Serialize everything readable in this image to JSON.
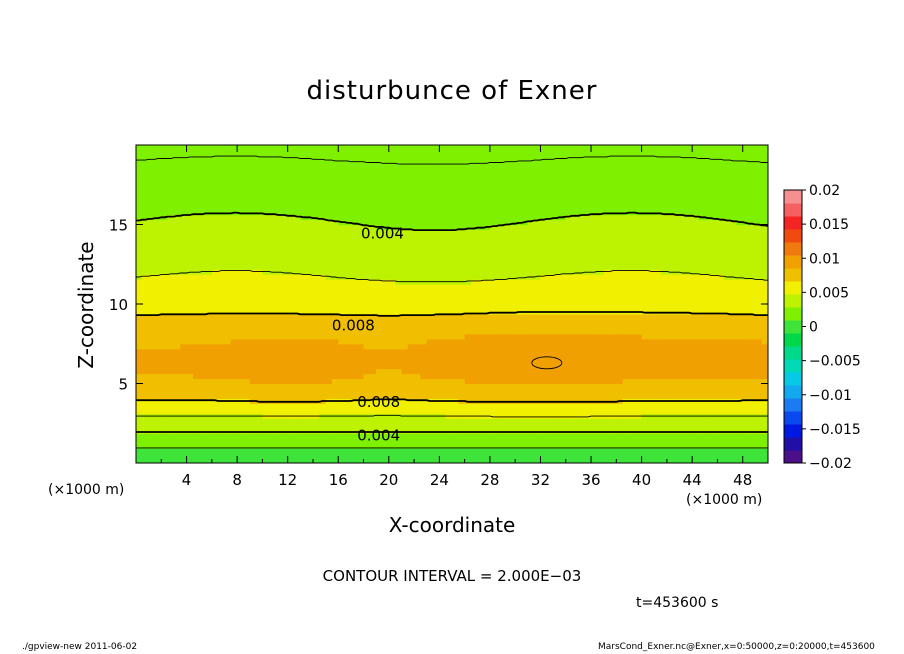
{
  "chart_data": {
    "type": "heatmap",
    "title": "disturbunce of Exner",
    "xlabel": "X-coordinate",
    "ylabel": "Z-coordinate",
    "x_unit_left": "(×1000 m)",
    "x_unit_right": "(×1000 m)",
    "xlim": [
      0,
      50
    ],
    "ylim": [
      0,
      20
    ],
    "x_ticks": [
      4,
      8,
      12,
      16,
      20,
      24,
      28,
      32,
      36,
      40,
      44,
      48
    ],
    "x_tick_labels": [
      "4",
      "8",
      "12",
      "16",
      "20",
      "24",
      "28",
      "32",
      "36",
      "40",
      "44",
      "48"
    ],
    "y_ticks": [
      5,
      10,
      15
    ],
    "y_tick_labels": [
      "5",
      "10",
      "15"
    ],
    "colorbar": {
      "range": [
        -0.02,
        0.02
      ],
      "levels": [
        -0.02,
        -0.018,
        -0.016,
        -0.014,
        -0.012,
        -0.01,
        -0.008,
        -0.006,
        -0.004,
        -0.002,
        0,
        0.002,
        0.004,
        0.006,
        0.008,
        0.01,
        0.012,
        0.014,
        0.016,
        0.018,
        0.02
      ],
      "colors": [
        "#4b0f8a",
        "#1f0fa6",
        "#0019e0",
        "#0a48f0",
        "#1b7cf2",
        "#12a9ee",
        "#06c9e6",
        "#00d8b6",
        "#00d88a",
        "#00d84a",
        "#3fe43a",
        "#7ef000",
        "#bdf200",
        "#f0f000",
        "#f0c000",
        "#f0a000",
        "#f07a10",
        "#f04a10",
        "#f42424",
        "#f56060",
        "#f69090"
      ],
      "tick_values": [
        0.02,
        0.015,
        0.01,
        0.005,
        0,
        -0.005,
        -0.01,
        -0.015,
        -0.02
      ],
      "tick_labels": [
        "0.02",
        "0.015",
        "0.01",
        "0.005",
        "0",
        "−0.005",
        "−0.01",
        "−0.015",
        "−0.02"
      ]
    },
    "field_profile": {
      "z": [
        0,
        0.5,
        1,
        1.5,
        2,
        2.5,
        3,
        3.5,
        4,
        4.5,
        5,
        5.5,
        6,
        7,
        8,
        8.5,
        9,
        10,
        11,
        12,
        13,
        14,
        15,
        16,
        17,
        18,
        19,
        20
      ],
      "value": [
        0.0,
        0.001,
        0.002,
        0.003,
        0.004,
        0.005,
        0.006,
        0.007,
        0.008,
        0.0088,
        0.0094,
        0.0099,
        0.0102,
        0.0101,
        0.0096,
        0.009,
        0.0083,
        0.0072,
        0.0064,
        0.0058,
        0.0052,
        0.0046,
        0.0041,
        0.0036,
        0.0032,
        0.0029,
        0.0026,
        0.0024
      ]
    },
    "contour_labels": [
      {
        "text": "0.004",
        "x": 17.8,
        "z": 14.5
      },
      {
        "text": "0.008",
        "x": 15.5,
        "z": 8.7
      },
      {
        "text": "0.008",
        "x": 17.5,
        "z": 3.9
      },
      {
        "text": "0.004",
        "x": 17.5,
        "z": 1.8
      }
    ],
    "contour_interval_text": "CONTOUR INTERVAL = 2.000E−03",
    "time_text": "t=453600 s"
  },
  "footer": {
    "left": "./gpview-new  2011-06-02",
    "right": "MarsCond_Exner.nc@Exner,x=0:50000,z=0:20000,t=453600"
  }
}
